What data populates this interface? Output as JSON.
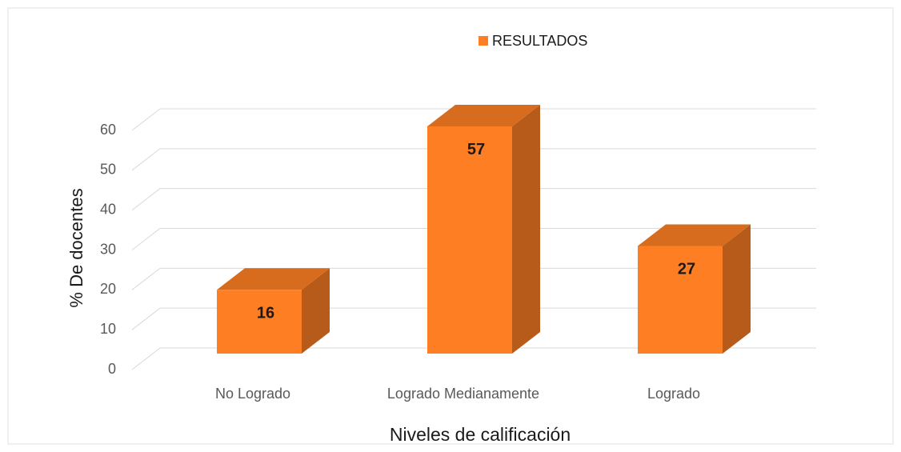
{
  "chart_data": {
    "type": "bar3d",
    "title": null,
    "legend_label": "RESULTADOS",
    "x_label": "Niveles de calificación",
    "y_label": "% De docentes",
    "categories": [
      "No Logrado",
      "Logrado Medianamente",
      "Logrado"
    ],
    "series": [
      {
        "name": "RESULTADOS",
        "color": "#fd7e23",
        "values": [
          16,
          57,
          27
        ]
      }
    ],
    "ylim": [
      0,
      60
    ],
    "yticks": [
      0,
      10,
      20,
      30,
      40,
      50,
      60
    ],
    "grid": true,
    "legend": "top"
  }
}
